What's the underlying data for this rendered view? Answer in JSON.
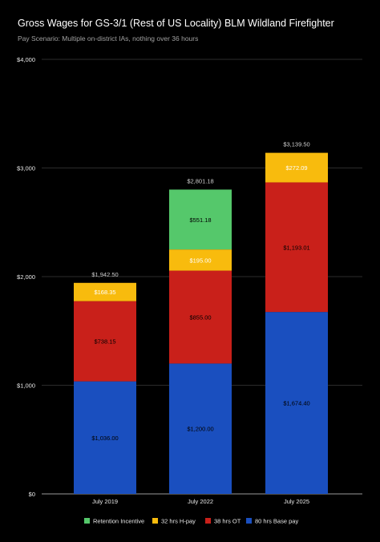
{
  "chart_data": {
    "type": "bar",
    "stacked": true,
    "title": "Gross Wages for GS-3/1 (Rest of US Locality) BLM Wildland Firefighter",
    "subtitle": "Pay Scenario: Multiple on-district IAs, nothing over 36 hours",
    "categories": [
      "July 2019",
      "July 2022",
      "July 2025"
    ],
    "ylim": [
      0,
      4000
    ],
    "yticks": [
      0,
      1000,
      2000,
      3000,
      4000
    ],
    "ytick_labels": [
      "$0",
      "$1,000",
      "$2,000",
      "$3,000",
      "$4,000"
    ],
    "grid": true,
    "legend_position": "bottom",
    "series": [
      {
        "name": "80 hrs Base pay",
        "color": "#1a4fbf",
        "values": [
          1036.0,
          1200.0,
          1674.4
        ],
        "labels": [
          "$1,036.00",
          "$1,200.00",
          "$1,674.40"
        ],
        "label_color": "#000000"
      },
      {
        "name": "38 hrs OT",
        "color": "#c9201a",
        "values": [
          738.15,
          855.0,
          1193.01
        ],
        "labels": [
          "$738.15",
          "$855.00",
          "$1,193.01"
        ],
        "label_color": "#000000"
      },
      {
        "name": "32 hrs H-pay",
        "color": "#f8bb0d",
        "values": [
          168.35,
          195.0,
          272.09
        ],
        "labels": [
          "$168.35",
          "$195.00",
          "$272.09"
        ],
        "label_color": "#ffffff"
      },
      {
        "name": "Retention Incentive",
        "color": "#55c86b",
        "values": [
          0,
          551.18,
          0
        ],
        "labels": [
          "",
          "$551.18",
          ""
        ],
        "label_color": "#000000"
      }
    ],
    "totals": [
      1942.5,
      2801.18,
      3139.5
    ],
    "total_labels": [
      "$1,942.50",
      "$2,801.18",
      "$3,139.50"
    ],
    "legend_order": [
      "Retention Incentive",
      "32 hrs H-pay",
      "38 hrs OT",
      "80 hrs Base pay"
    ]
  }
}
